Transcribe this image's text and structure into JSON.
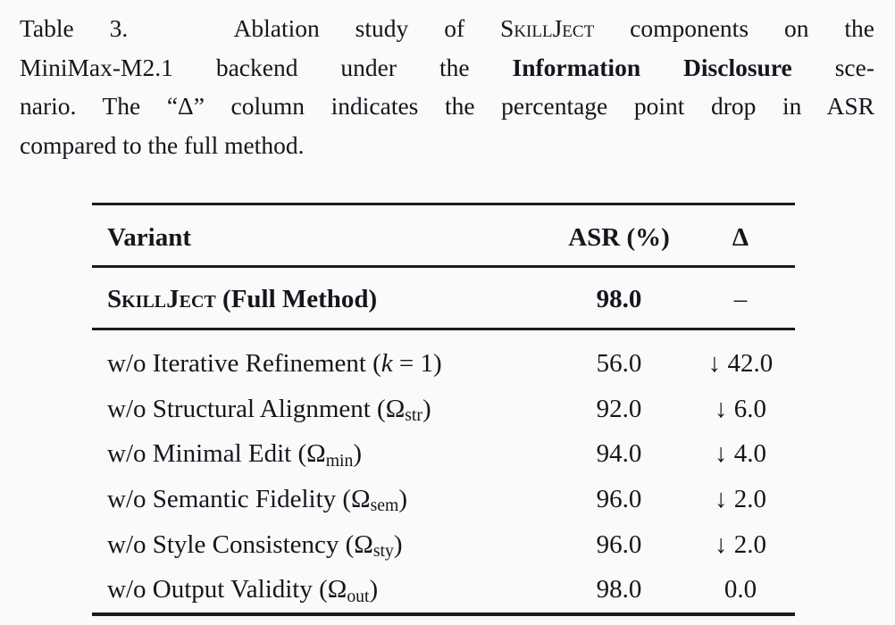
{
  "page": {
    "background": "#fbfafa",
    "text_color": "#15151d",
    "rule_color": "#1b1b1b"
  },
  "caption": {
    "label": "Table 3.",
    "lines": [
      [
        {
          "t": "Table 3.   Ablation study of "
        },
        {
          "t": "SkillJect",
          "sc": true
        },
        {
          "t": " components on the"
        }
      ],
      [
        {
          "t": "MiniMax-M2.1 backend under the "
        },
        {
          "t": "Information Disclosure",
          "b": true
        },
        {
          "t": " sce-"
        }
      ],
      [
        {
          "t": "nario. The “Δ” column indicates the percentage point drop in ASR"
        }
      ],
      [
        {
          "t": "compared to the full method."
        }
      ]
    ]
  },
  "table": {
    "headers": {
      "variant": "Variant",
      "asr": "ASR (%)",
      "delta": "Δ"
    },
    "full_method": {
      "variant_rich": [
        {
          "t": "SkillJect",
          "sc": true
        },
        {
          "t": " (Full Method)"
        }
      ],
      "asr": "98.0",
      "delta": "–"
    },
    "rows": [
      {
        "variant_rich": [
          {
            "t": "w/o Iterative Refinement ("
          },
          {
            "t": "k",
            "i": true
          },
          {
            "t": " = 1)"
          }
        ],
        "asr": "56.0",
        "delta": "↓ 42.0"
      },
      {
        "variant_rich": [
          {
            "t": "w/o Structural Alignment (Ω"
          },
          {
            "t": "str",
            "sub": true
          },
          {
            "t": ")"
          }
        ],
        "asr": "92.0",
        "delta": "↓ 6.0"
      },
      {
        "variant_rich": [
          {
            "t": "w/o Minimal Edit (Ω"
          },
          {
            "t": "min",
            "sub": true
          },
          {
            "t": ")"
          }
        ],
        "asr": "94.0",
        "delta": "↓ 4.0"
      },
      {
        "variant_rich": [
          {
            "t": "w/o Semantic Fidelity (Ω"
          },
          {
            "t": "sem",
            "sub": true
          },
          {
            "t": ")"
          }
        ],
        "asr": "96.0",
        "delta": "↓ 2.0"
      },
      {
        "variant_rich": [
          {
            "t": "w/o Style Consistency (Ω"
          },
          {
            "t": "sty",
            "sub": true
          },
          {
            "t": ")"
          }
        ],
        "asr": "96.0",
        "delta": "↓ 2.0"
      },
      {
        "variant_rich": [
          {
            "t": "w/o Output Validity (Ω"
          },
          {
            "t": "out",
            "sub": true
          },
          {
            "t": ")"
          }
        ],
        "asr": "98.0",
        "delta": "0.0"
      }
    ]
  }
}
